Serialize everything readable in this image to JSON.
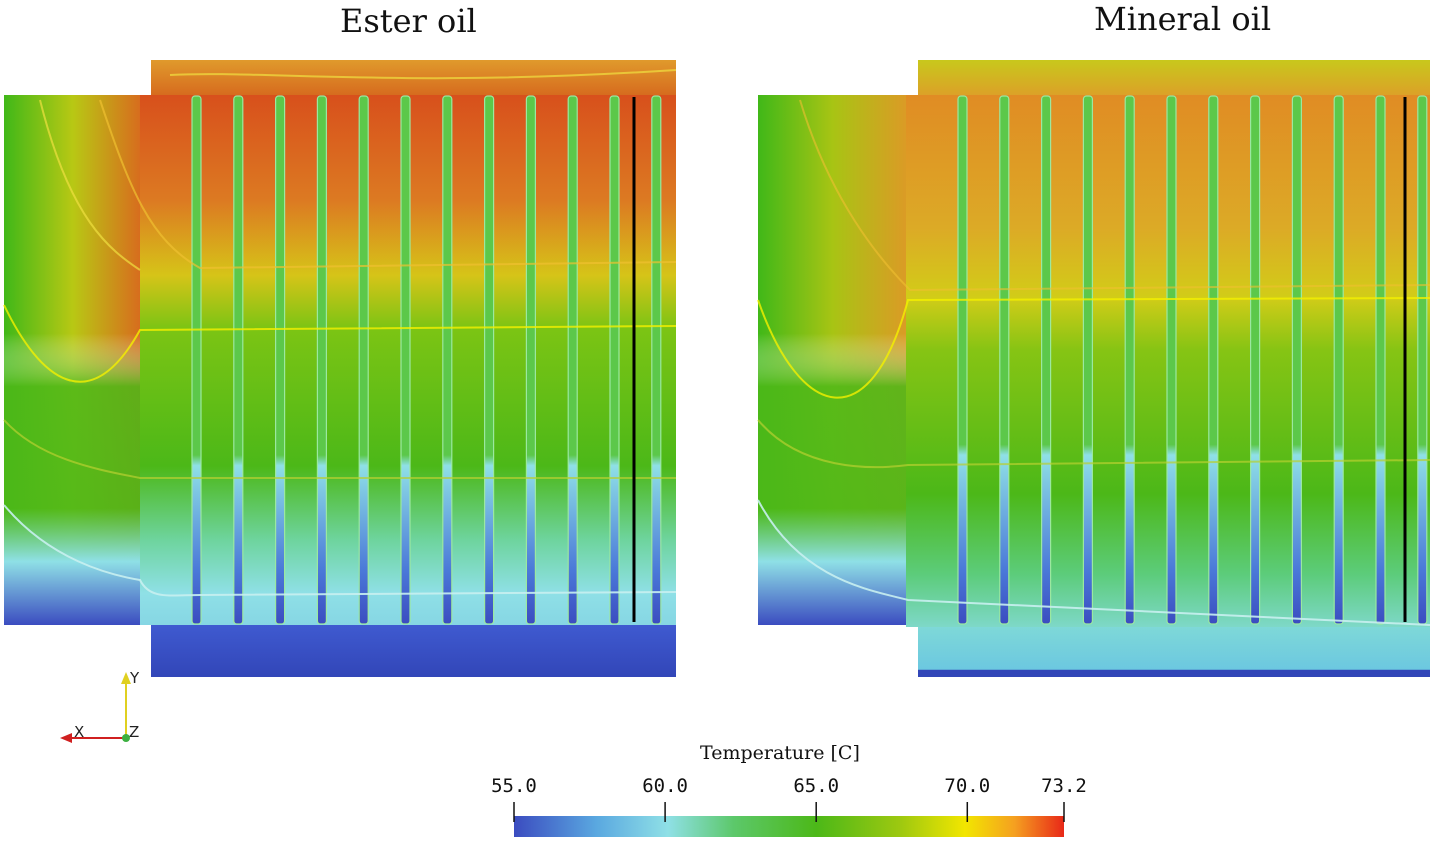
{
  "panels": [
    {
      "title": "Ester oil"
    },
    {
      "title": "Mineral oil"
    }
  ],
  "orientation_axes": {
    "x": "X",
    "y": "Y",
    "z": "Z"
  },
  "colorbar": {
    "title": "Temperature  [C]",
    "min": 55.0,
    "max": 73.2,
    "ticks": [
      "55.0",
      "60.0",
      "65.0",
      "70.0",
      "73.2"
    ],
    "tick_values": [
      55.0,
      60.0,
      65.0,
      70.0,
      73.2
    ],
    "colors": [
      "#3b4cc0",
      "#5aa8e0",
      "#8fe0e6",
      "#5cc86a",
      "#4cb818",
      "#9cc810",
      "#f2e600",
      "#f5a020",
      "#e82818"
    ]
  },
  "colors": {
    "hot": "#d9531e",
    "warm": "#e6a020",
    "mid": "#4cb818",
    "cool": "#8fe0e6",
    "cold": "#3b4cc0",
    "sensor_line": "#000000"
  }
}
